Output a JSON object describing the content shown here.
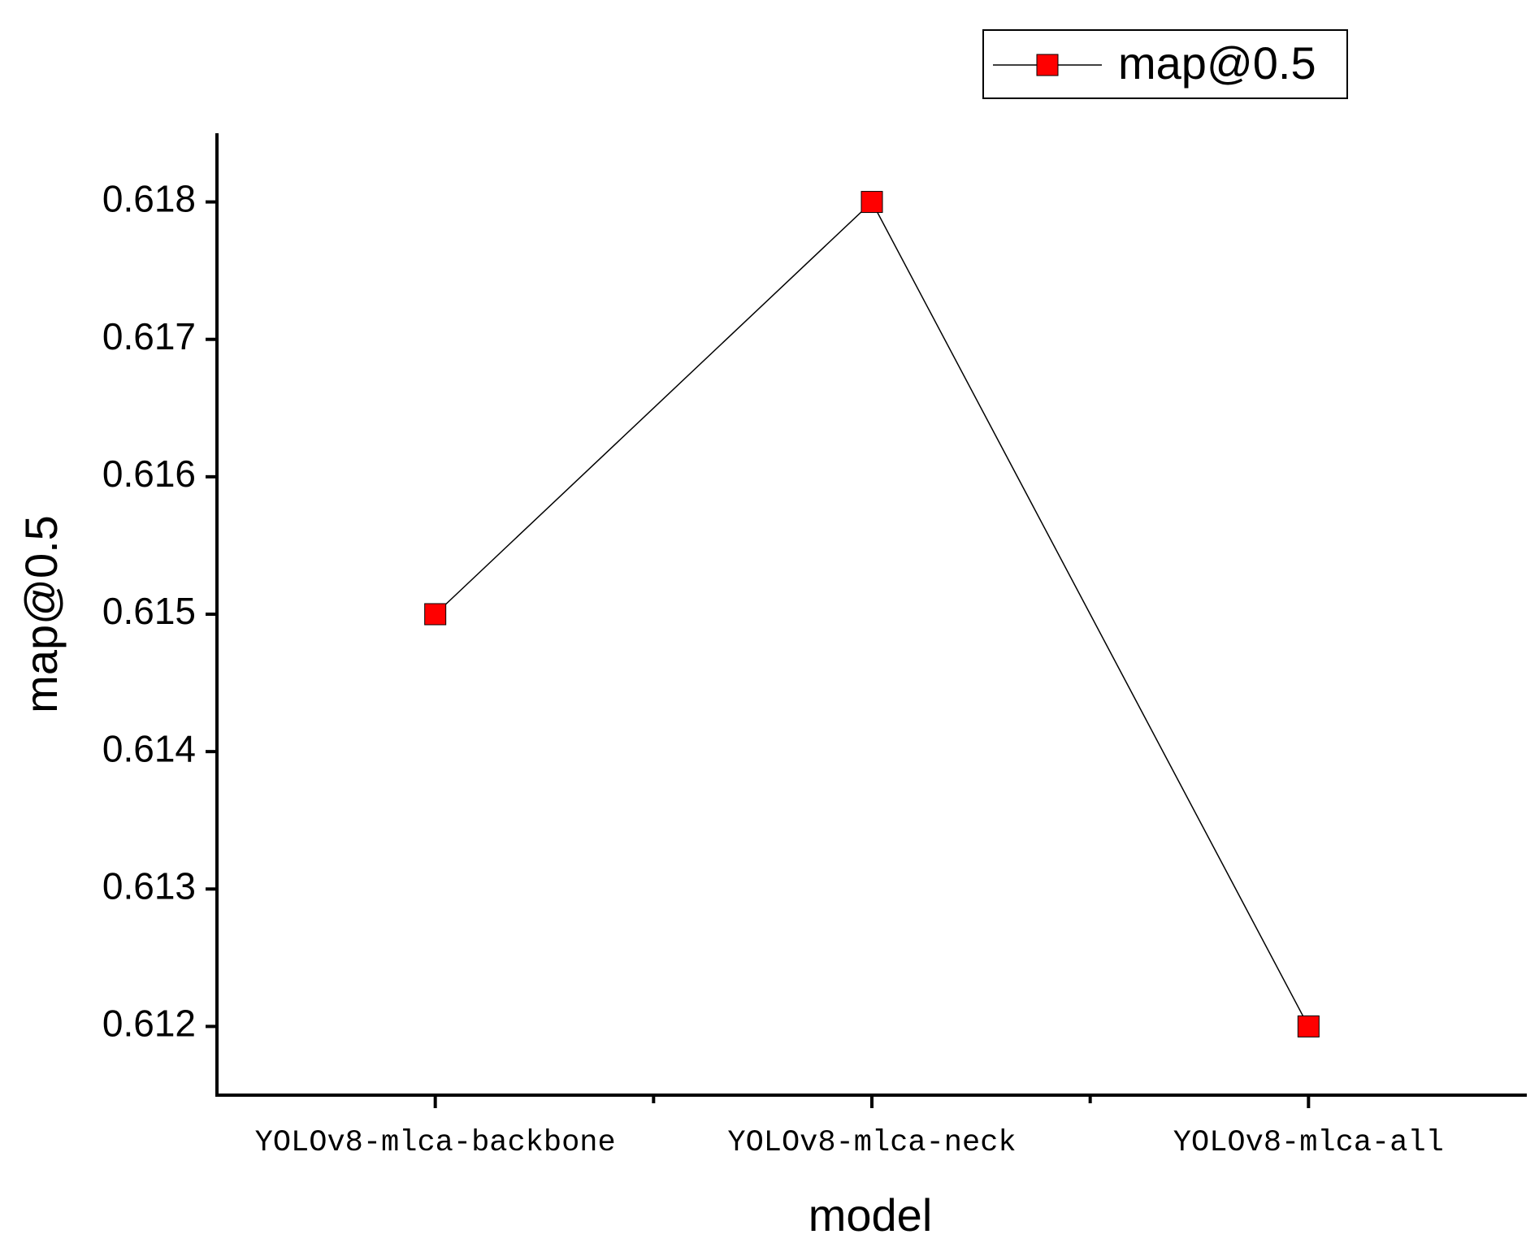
{
  "chart_data": {
    "type": "line",
    "x_label": "model",
    "y_label": "map@0.5",
    "categories": [
      "YOLOv8-mlca-backbone",
      "YOLOv8-mlca-neck",
      "YOLOv8-mlca-all"
    ],
    "series": [
      {
        "name": "map@0.5",
        "color": "#ff0000",
        "line_color": "#000000",
        "values": [
          0.615,
          0.618,
          0.612
        ]
      }
    ],
    "ylim": [
      0.6115,
      0.6185
    ],
    "yticks": [
      0.612,
      0.613,
      0.614,
      0.615,
      0.616,
      0.617,
      0.618
    ],
    "legend": "top-right",
    "grid": false
  }
}
